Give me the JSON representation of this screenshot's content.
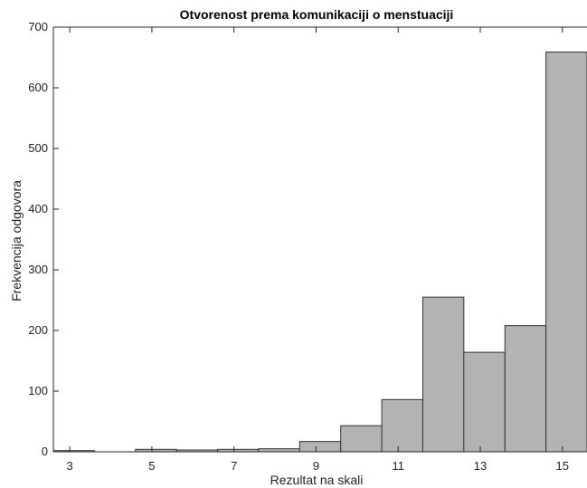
{
  "chart_data": {
    "type": "bar",
    "title": "Otvorenost prema komunikaciji o menstuaciji",
    "xlabel": "Rezultat na skali",
    "ylabel": "Frekvencija odgovora",
    "bins": [
      {
        "start": 2.6,
        "end": 3.6,
        "value": 2
      },
      {
        "start": 3.6,
        "end": 4.6,
        "value": 0
      },
      {
        "start": 4.6,
        "end": 5.6,
        "value": 4
      },
      {
        "start": 5.6,
        "end": 6.6,
        "value": 3
      },
      {
        "start": 6.6,
        "end": 7.6,
        "value": 4
      },
      {
        "start": 7.6,
        "end": 8.6,
        "value": 5
      },
      {
        "start": 8.6,
        "end": 9.6,
        "value": 17
      },
      {
        "start": 9.6,
        "end": 10.6,
        "value": 43
      },
      {
        "start": 10.6,
        "end": 11.6,
        "value": 86
      },
      {
        "start": 11.6,
        "end": 12.6,
        "value": 255
      },
      {
        "start": 12.6,
        "end": 13.6,
        "value": 164
      },
      {
        "start": 13.6,
        "end": 14.6,
        "value": 208
      },
      {
        "start": 14.6,
        "end": 15.6,
        "value": 659
      }
    ],
    "xlim": [
      2.6,
      15.6
    ],
    "ylim": [
      0,
      700
    ],
    "xticks": [
      3,
      5,
      7,
      9,
      11,
      13,
      15
    ],
    "yticks": [
      0,
      100,
      200,
      300,
      400,
      500,
      600,
      700
    ],
    "bar_color": "#b3b3b3",
    "edge_color": "#333333",
    "grid": false
  }
}
